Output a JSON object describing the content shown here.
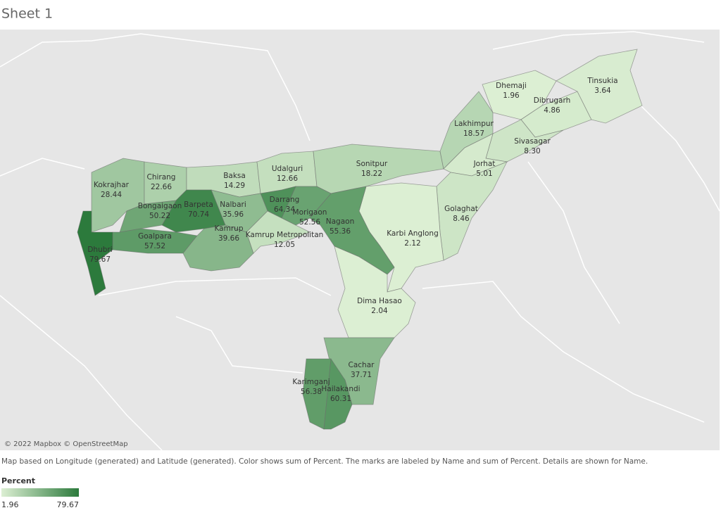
{
  "title": "Sheet 1",
  "map": {
    "names": [
      "Kokrajhar",
      "Chirang",
      "Baksa",
      "Udalguri",
      "Sonitpur",
      "Lakhimpur",
      "Dhemaji",
      "Dibrugarh",
      "Tinsukia",
      "Sivasagar",
      "Jorhat",
      "Golaghat",
      "Karbi Anglong",
      "Nagaon",
      "Morigaon",
      "Darrang",
      "Nalbari",
      "Barpeta",
      "Bongaigaon",
      "Goalpara",
      "Kamrup",
      "Kamrup Metropolitan",
      "Dhubri",
      "Dima Hasao",
      "Cachar",
      "Karimganj",
      "Hailakandi"
    ],
    "values": [
      28.44,
      22.66,
      14.29,
      12.66,
      18.22,
      18.57,
      1.96,
      4.86,
      3.64,
      8.3,
      5.01,
      8.46,
      2.12,
      55.36,
      52.56,
      64.34,
      35.96,
      70.74,
      50.22,
      57.52,
      39.66,
      12.05,
      79.67,
      2.04,
      37.71,
      56.38,
      60.31
    ],
    "value_labels": [
      "28.44",
      "22.66",
      "14.29",
      "12.66",
      "18.22",
      "18.57",
      "1.96",
      "4.86",
      "3.64",
      "8.30",
      "5.01",
      "8.46",
      "2.12",
      "55.36",
      "52.56",
      "64.34",
      "35.96",
      "70.74",
      "50.22",
      "57.52",
      "39.66",
      "12.05",
      "79.67",
      "2.04",
      "37.71",
      "56.38",
      "60.31"
    ],
    "color_range": [
      "#dcefd3",
      "#2c7a3c"
    ],
    "attribution": "© 2022 Mapbox © OpenStreetMap"
  },
  "caption": "Map based on Longitude (generated) and Latitude (generated).  Color shows sum of Percent.  The marks are labeled by Name and sum of Percent.  Details are shown for Name.",
  "legend": {
    "title": "Percent",
    "range": [
      1.96,
      79.67
    ],
    "labels": [
      "1.96",
      "79.67"
    ]
  }
}
